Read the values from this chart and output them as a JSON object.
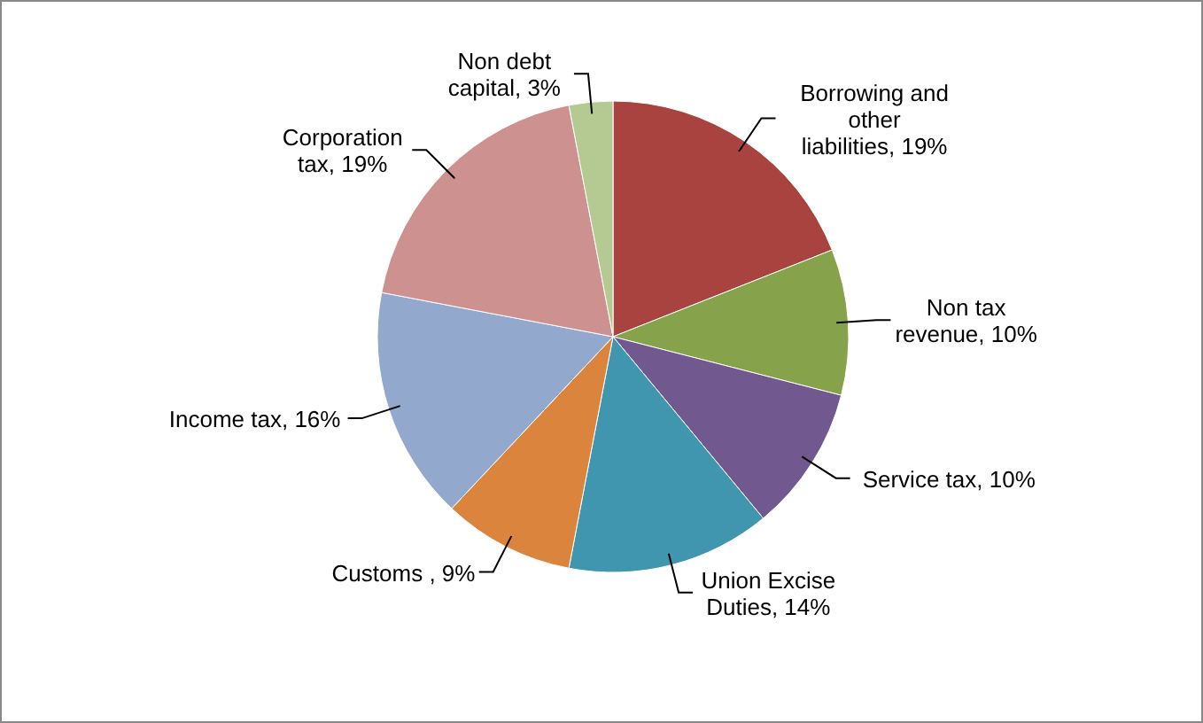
{
  "chart_data": {
    "type": "pie",
    "categories": [
      "Borrowing and other liabilities",
      "Non tax revenue",
      "Service tax",
      "Union Excise Duties",
      "Customs ",
      "Income tax",
      "Corporation tax",
      "Non debt capital"
    ],
    "values": [
      19,
      10,
      10,
      14,
      9,
      16,
      19,
      3
    ],
    "value_labels": [
      "19%",
      "10%",
      "10%",
      "14%",
      "9%",
      "16%",
      "19%",
      "3%"
    ],
    "colors": [
      "#a9433f",
      "#86a24a",
      "#71588f",
      "#3f96ae",
      "#db843d",
      "#92a8cd",
      "#cd918f",
      "#b5ca92"
    ]
  }
}
